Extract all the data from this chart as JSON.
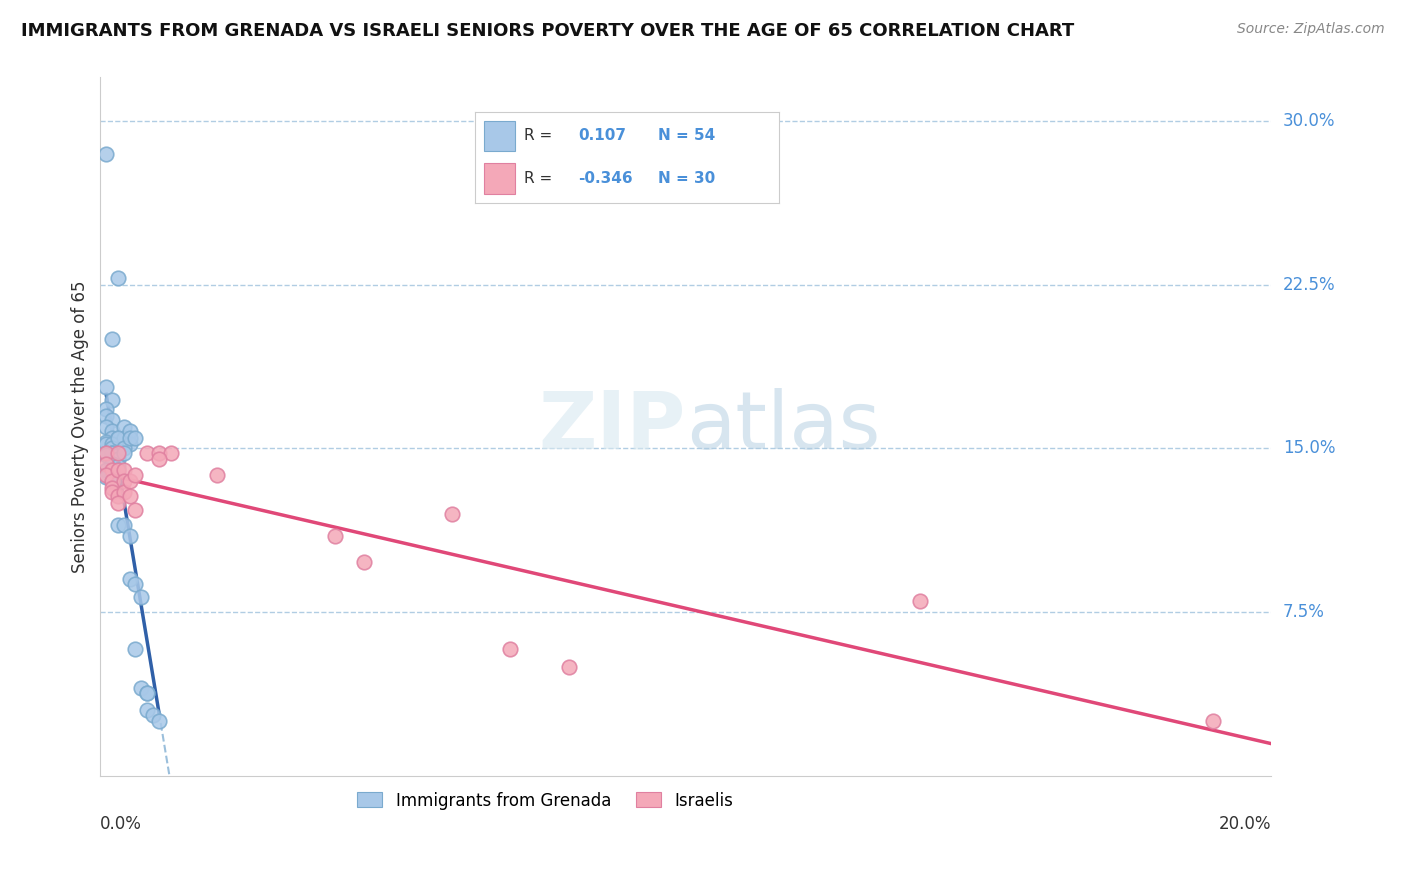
{
  "title": "IMMIGRANTS FROM GRENADA VS ISRAELI SENIORS POVERTY OVER THE AGE OF 65 CORRELATION CHART",
  "source": "Source: ZipAtlas.com",
  "ylabel": "Seniors Poverty Over the Age of 65",
  "watermark": "ZIPatlas",
  "xlim": [
    0.0,
    0.2
  ],
  "ylim": [
    0.0,
    0.32
  ],
  "color_grenada": "#a8c8e8",
  "color_israel": "#f4a8b8",
  "color_grenada_line": "#3060a8",
  "color_israel_line": "#e04878",
  "color_dashed": "#90b8d8",
  "background_color": "#ffffff",
  "grenada_x": [
    0.001,
    0.003,
    0.002,
    0.001,
    0.002,
    0.001,
    0.001,
    0.002,
    0.001,
    0.002,
    0.002,
    0.003,
    0.001,
    0.001,
    0.002,
    0.002,
    0.001,
    0.002,
    0.002,
    0.001,
    0.003,
    0.003,
    0.002,
    0.002,
    0.003,
    0.002,
    0.001,
    0.003,
    0.002,
    0.002,
    0.001,
    0.002,
    0.004,
    0.004,
    0.003,
    0.005,
    0.005,
    0.004,
    0.004,
    0.005,
    0.003,
    0.004,
    0.006,
    0.005,
    0.005,
    0.006,
    0.007,
    0.006,
    0.007,
    0.008,
    0.008,
    0.008,
    0.009,
    0.01
  ],
  "grenada_y": [
    0.285,
    0.228,
    0.2,
    0.178,
    0.172,
    0.168,
    0.165,
    0.163,
    0.16,
    0.158,
    0.155,
    0.155,
    0.153,
    0.152,
    0.152,
    0.15,
    0.148,
    0.148,
    0.148,
    0.147,
    0.147,
    0.145,
    0.143,
    0.143,
    0.142,
    0.14,
    0.14,
    0.14,
    0.138,
    0.138,
    0.137,
    0.135,
    0.16,
    0.155,
    0.155,
    0.158,
    0.152,
    0.15,
    0.148,
    0.155,
    0.115,
    0.115,
    0.155,
    0.11,
    0.09,
    0.088,
    0.082,
    0.058,
    0.04,
    0.038,
    0.038,
    0.03,
    0.028,
    0.025
  ],
  "israel_x": [
    0.001,
    0.001,
    0.002,
    0.001,
    0.002,
    0.002,
    0.003,
    0.003,
    0.002,
    0.003,
    0.004,
    0.004,
    0.004,
    0.003,
    0.005,
    0.006,
    0.005,
    0.006,
    0.008,
    0.01,
    0.012,
    0.01,
    0.02,
    0.04,
    0.045,
    0.06,
    0.07,
    0.08,
    0.14,
    0.19
  ],
  "israel_y": [
    0.148,
    0.143,
    0.14,
    0.138,
    0.135,
    0.132,
    0.148,
    0.14,
    0.13,
    0.128,
    0.14,
    0.135,
    0.13,
    0.125,
    0.135,
    0.138,
    0.128,
    0.122,
    0.148,
    0.148,
    0.148,
    0.145,
    0.138,
    0.11,
    0.098,
    0.12,
    0.058,
    0.05,
    0.08,
    0.025
  ]
}
